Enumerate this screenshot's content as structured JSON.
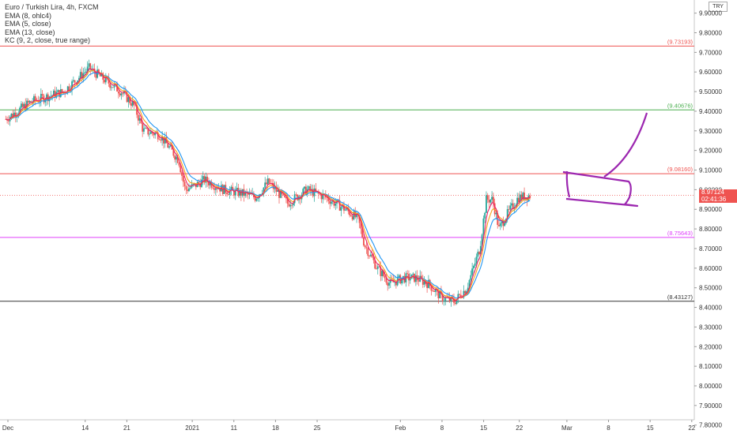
{
  "legend": {
    "title": "Euro / Turkish Lira, 4h, FXCM",
    "indicators": [
      "EMA (8, ohlc4)",
      "EMA (5, close)",
      "EMA (13, close)",
      "KC (9, 2, close, true range)"
    ]
  },
  "currency": "TRY",
  "last_price": {
    "value": "8.97124",
    "countdown": "02:41:36"
  },
  "colors": {
    "up": "#26a69a",
    "down": "#ef5350",
    "ema8": "#f7a21b",
    "ema5": "#e91e63",
    "ema13": "#2196f3",
    "drawing": "#9c27b0"
  },
  "chart_data": {
    "type": "candlestick",
    "title": "Euro / Turkish Lira, 4h, FXCM",
    "ylim": [
      7.8,
      9.9
    ],
    "y_ticks": [
      9.9,
      9.8,
      9.7,
      9.6,
      9.5,
      9.4,
      9.3,
      9.2,
      9.1,
      9.0,
      8.9,
      8.8,
      8.7,
      8.6,
      8.5,
      8.4,
      8.3,
      8.2,
      8.1,
      8.0,
      7.9,
      7.8
    ],
    "x_ticks": [
      "Dec",
      "14",
      "21",
      "2021",
      "11",
      "18",
      "25",
      "Feb",
      "8",
      "15",
      "22",
      "Mar",
      "8",
      "15",
      "22"
    ],
    "price_path": [
      [
        0,
        9.36
      ],
      [
        4,
        9.45
      ],
      [
        9,
        9.5
      ],
      [
        13,
        9.62
      ],
      [
        15,
        9.57
      ],
      [
        18,
        9.5
      ],
      [
        20,
        9.43
      ],
      [
        21.5,
        9.3
      ],
      [
        24,
        9.28
      ],
      [
        27,
        9.15
      ],
      [
        28,
        9.0
      ],
      [
        29.5,
        9.02
      ],
      [
        31,
        9.05
      ],
      [
        34,
        9.0
      ],
      [
        37,
        8.98
      ],
      [
        39,
        8.96
      ],
      [
        41,
        9.04
      ],
      [
        44,
        8.93
      ],
      [
        47,
        9.0
      ],
      [
        50,
        8.96
      ],
      [
        53,
        8.9
      ],
      [
        55,
        8.85
      ],
      [
        56,
        8.72
      ],
      [
        58,
        8.6
      ],
      [
        60,
        8.52
      ],
      [
        62,
        8.55
      ],
      [
        64,
        8.55
      ],
      [
        66,
        8.52
      ],
      [
        68,
        8.45
      ],
      [
        70,
        8.43
      ],
      [
        72,
        8.5
      ],
      [
        74,
        8.7
      ],
      [
        75,
        8.95
      ],
      [
        76,
        8.95
      ],
      [
        77,
        8.8
      ],
      [
        78,
        8.86
      ],
      [
        80,
        8.96
      ],
      [
        82,
        8.97124
      ]
    ],
    "horizontal_levels": [
      {
        "price": 9.73193,
        "label": "(9.73193)",
        "color": "#ef5350"
      },
      {
        "price": 9.40676,
        "label": "(9.40676)",
        "color": "#4caf50"
      },
      {
        "price": 9.0816,
        "label": "(9.08160)",
        "color": "#ef5350"
      },
      {
        "price": 8.75643,
        "label": "(8.75643)",
        "color": "#e040fb"
      },
      {
        "price": 8.43127,
        "label": "(8.43127)",
        "color": "#333333"
      }
    ],
    "last_price": 8.97124
  }
}
